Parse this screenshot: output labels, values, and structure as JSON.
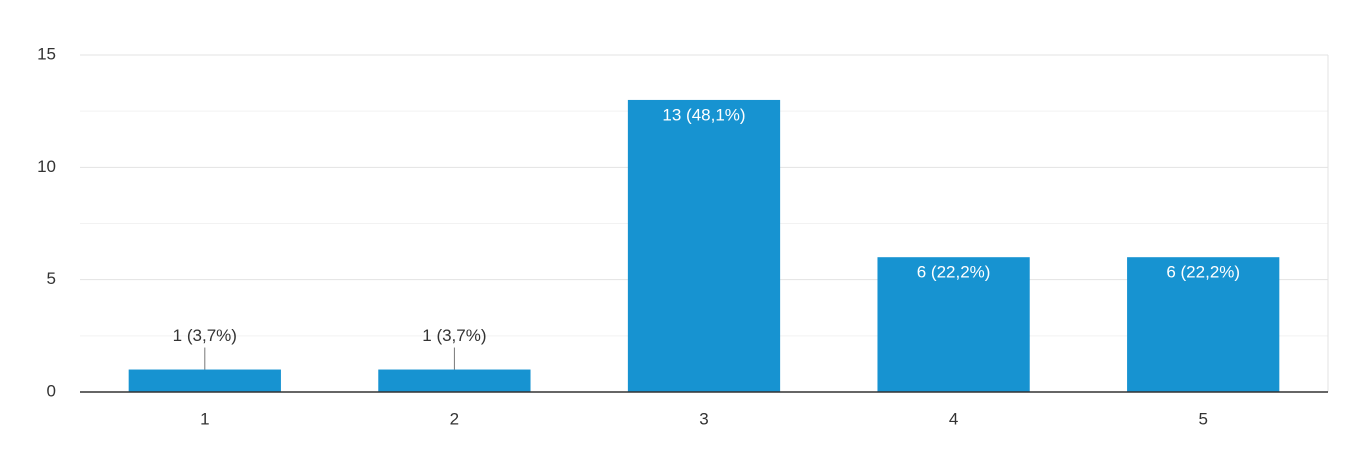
{
  "chart_data": {
    "type": "bar",
    "categories": [
      "1",
      "2",
      "3",
      "4",
      "5"
    ],
    "values": [
      1,
      1,
      13,
      6,
      6
    ],
    "value_labels": [
      "1 (3,7%)",
      "1 (3,7%)",
      "13 (48,1%)",
      "6 (22,2%)",
      "6 (22,2%)"
    ],
    "color": "#1793d1",
    "ylim": [
      0,
      15
    ],
    "yticks": [
      0,
      5,
      10,
      15
    ],
    "minor_yticks": [
      2.5,
      7.5,
      12.5
    ],
    "grid": true
  }
}
